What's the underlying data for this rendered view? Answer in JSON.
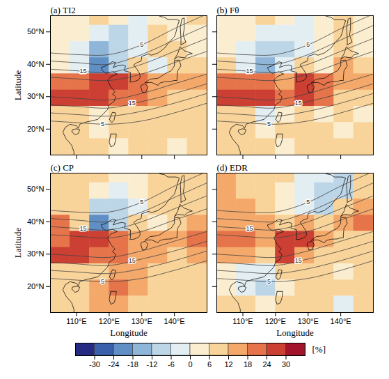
{
  "chart_data": {
    "type": "heatmap",
    "xlabel": "Longitude",
    "ylabel": "Latitude",
    "xlim": [
      102,
      150
    ],
    "ylim": [
      12,
      55
    ],
    "xticks": [
      {
        "value": 110,
        "label": "110°E"
      },
      {
        "value": 120,
        "label": "120°E"
      },
      {
        "value": 130,
        "label": "130°E"
      },
      {
        "value": 140,
        "label": "140°E"
      }
    ],
    "yticks": [
      {
        "value": 20,
        "label": "20°N"
      },
      {
        "value": 30,
        "label": "30°N"
      },
      {
        "value": 40,
        "label": "40°N"
      },
      {
        "value": 50,
        "label": "50°N"
      }
    ],
    "x": [
      105,
      111,
      117,
      123,
      129,
      135,
      141,
      147
    ],
    "y": [
      54.5,
      49.5,
      44.5,
      39.5,
      34.5,
      29.5,
      24.5,
      19.5,
      14.5
    ],
    "panels": [
      {
        "title": "(a) TI2",
        "values": [
          [
            2,
            4,
            6,
            0,
            -6,
            2,
            4,
            6
          ],
          [
            4,
            2,
            -6,
            -12,
            -6,
            6,
            4,
            2
          ],
          [
            4,
            -6,
            -18,
            -12,
            -6,
            6,
            6,
            4
          ],
          [
            2,
            -6,
            -24,
            -12,
            6,
            -6,
            6,
            8
          ],
          [
            18,
            20,
            24,
            24,
            18,
            12,
            12,
            12
          ],
          [
            24,
            24,
            24,
            20,
            18,
            12,
            8,
            6
          ],
          [
            6,
            6,
            0,
            6,
            6,
            6,
            6,
            6
          ],
          [
            6,
            6,
            4,
            6,
            6,
            6,
            6,
            6
          ],
          [
            6,
            10,
            6,
            4,
            6,
            6,
            4,
            6
          ]
        ]
      },
      {
        "title": "(b) Fθ",
        "values": [
          [
            4,
            2,
            6,
            0,
            -6,
            4,
            6,
            2
          ],
          [
            4,
            0,
            -6,
            -6,
            -6,
            4,
            6,
            4
          ],
          [
            2,
            -6,
            -12,
            -12,
            -6,
            4,
            6,
            4
          ],
          [
            6,
            -6,
            -18,
            -6,
            6,
            0,
            12,
            8
          ],
          [
            18,
            18,
            18,
            12,
            24,
            18,
            12,
            12
          ],
          [
            24,
            24,
            24,
            18,
            24,
            18,
            8,
            6
          ],
          [
            6,
            6,
            -6,
            0,
            6,
            4,
            6,
            4
          ],
          [
            6,
            6,
            0,
            6,
            6,
            6,
            4,
            6
          ],
          [
            6,
            6,
            6,
            4,
            6,
            6,
            6,
            6
          ]
        ]
      },
      {
        "title": "(c) CP",
        "values": [
          [
            6,
            6,
            6,
            4,
            0,
            6,
            6,
            6
          ],
          [
            6,
            6,
            0,
            -6,
            0,
            6,
            6,
            6
          ],
          [
            6,
            6,
            -12,
            -12,
            -6,
            6,
            6,
            6
          ],
          [
            18,
            6,
            -24,
            -12,
            6,
            0,
            6,
            12
          ],
          [
            20,
            24,
            24,
            18,
            12,
            12,
            12,
            18
          ],
          [
            24,
            24,
            18,
            18,
            12,
            12,
            8,
            12
          ],
          [
            6,
            6,
            6,
            12,
            12,
            8,
            6,
            6
          ],
          [
            6,
            6,
            12,
            18,
            12,
            6,
            6,
            6
          ],
          [
            6,
            6,
            12,
            12,
            6,
            6,
            6,
            6
          ]
        ]
      },
      {
        "title": "(d) EDR",
        "values": [
          [
            12,
            6,
            6,
            6,
            -6,
            -6,
            -12,
            6
          ],
          [
            12,
            6,
            6,
            0,
            -6,
            -12,
            -12,
            6
          ],
          [
            12,
            12,
            6,
            0,
            -6,
            -12,
            6,
            12
          ],
          [
            12,
            12,
            12,
            6,
            12,
            6,
            12,
            18
          ],
          [
            18,
            18,
            12,
            24,
            24,
            12,
            6,
            6
          ],
          [
            12,
            12,
            6,
            24,
            12,
            6,
            6,
            6
          ],
          [
            0,
            -6,
            -6,
            6,
            6,
            6,
            0,
            6
          ],
          [
            0,
            -6,
            -12,
            0,
            6,
            6,
            6,
            6
          ],
          [
            6,
            6,
            0,
            6,
            6,
            6,
            -6,
            6
          ]
        ]
      }
    ],
    "colors": [
      "#262a82",
      "#3a5fab",
      "#5f8fc4",
      "#8fb6d9",
      "#bcd6e8",
      "#e3eef2",
      "#fbeed0",
      "#f9d49a",
      "#f4a86a",
      "#e6744a",
      "#cc3f33",
      "#a3132b"
    ],
    "colorbar": {
      "label": "[%]",
      "range": [
        -36,
        36
      ],
      "ticks": [
        -30,
        -24,
        -18,
        -12,
        -6,
        0,
        6,
        12,
        18,
        24,
        30
      ]
    },
    "contours": [
      {
        "level": 5,
        "points": [
          [
            102,
            43.5
          ],
          [
            110,
            43
          ],
          [
            120,
            43
          ],
          [
            130,
            46
          ],
          [
            140,
            51
          ],
          [
            150,
            55.5
          ]
        ]
      },
      {
        "level": 10,
        "points": [
          [
            102,
            41
          ],
          [
            110,
            40.5
          ],
          [
            120,
            40
          ],
          [
            130,
            43
          ],
          [
            140,
            47.5
          ],
          [
            150,
            52
          ]
        ]
      },
      {
        "level": 15,
        "points": [
          [
            102,
            38.5
          ],
          [
            110,
            38
          ],
          [
            120,
            37.5
          ],
          [
            130,
            40
          ],
          [
            140,
            44
          ],
          [
            150,
            48
          ]
        ]
      },
      {
        "level": 20,
        "points": [
          [
            102,
            36
          ],
          [
            110,
            35.5
          ],
          [
            120,
            35
          ],
          [
            130,
            37
          ],
          [
            140,
            40.5
          ],
          [
            150,
            44
          ]
        ]
      },
      {
        "level": 20,
        "points": [
          [
            102,
            30
          ],
          [
            110,
            29.5
          ],
          [
            120,
            29
          ],
          [
            130,
            31
          ],
          [
            140,
            34
          ],
          [
            150,
            37
          ]
        ]
      },
      {
        "level": 15,
        "points": [
          [
            102,
            27.5
          ],
          [
            110,
            27
          ],
          [
            120,
            26.5
          ],
          [
            130,
            28.5
          ],
          [
            140,
            31
          ],
          [
            150,
            34
          ]
        ]
      },
      {
        "level": 10,
        "points": [
          [
            102,
            25
          ],
          [
            110,
            24.5
          ],
          [
            120,
            24
          ],
          [
            130,
            25.5
          ],
          [
            140,
            28
          ],
          [
            150,
            31
          ]
        ]
      },
      {
        "level": 5,
        "points": [
          [
            102,
            22.5
          ],
          [
            110,
            22
          ],
          [
            120,
            21.5
          ],
          [
            130,
            22.5
          ],
          [
            140,
            25
          ],
          [
            150,
            28
          ]
        ]
      }
    ],
    "contour_labels": [
      {
        "level": 15,
        "lon": 112,
        "lat": 37.9
      },
      {
        "level": 15,
        "lon": 127,
        "lat": 27.9
      },
      {
        "level": 5,
        "lon": 130,
        "lat": 46
      },
      {
        "level": 5,
        "lon": 118,
        "lat": 21.6
      }
    ],
    "coastlines": [
      [
        [
          109.2,
          12
        ],
        [
          109.2,
          13
        ],
        [
          108.5,
          15
        ],
        [
          106.8,
          17
        ],
        [
          105.8,
          19
        ],
        [
          106.5,
          20.5
        ],
        [
          108,
          21.5
        ],
        [
          110,
          21
        ],
        [
          110.5,
          20.2
        ],
        [
          111,
          21.5
        ],
        [
          113,
          22.2
        ],
        [
          114.5,
          22.5
        ],
        [
          116.5,
          23
        ],
        [
          118,
          24.5
        ],
        [
          119.5,
          26
        ],
        [
          120,
          27.5
        ],
        [
          121.5,
          28.5
        ],
        [
          122,
          30
        ],
        [
          121,
          30.8
        ],
        [
          121.8,
          31.5
        ],
        [
          120.5,
          33
        ],
        [
          119.5,
          35
        ],
        [
          120.5,
          36.2
        ],
        [
          122.5,
          37
        ],
        [
          121,
          37.7
        ],
        [
          119,
          37.2
        ],
        [
          118,
          38
        ],
        [
          117.5,
          39
        ],
        [
          119,
          39.5
        ],
        [
          121,
          40.8
        ],
        [
          122,
          40.5
        ],
        [
          121.2,
          39
        ],
        [
          122.5,
          39.5
        ],
        [
          124,
          39.8
        ],
        [
          125,
          39.5
        ],
        [
          124.7,
          38
        ],
        [
          126.5,
          37.5
        ],
        [
          126.5,
          35
        ],
        [
          126.3,
          34.5
        ],
        [
          127.5,
          34.6
        ],
        [
          129,
          35.2
        ],
        [
          129.5,
          36
        ],
        [
          129.4,
          37
        ],
        [
          128.5,
          38.5
        ],
        [
          127.5,
          39.8
        ],
        [
          128.5,
          40.5
        ],
        [
          129.8,
          41
        ],
        [
          130,
          42.5
        ],
        [
          131,
          42.8
        ],
        [
          132,
          43.2
        ],
        [
          133,
          42.8
        ],
        [
          135,
          43.5
        ],
        [
          137,
          45
        ],
        [
          138.5,
          47
        ],
        [
          140,
          48.5
        ],
        [
          140.5,
          50
        ],
        [
          141,
          52
        ],
        [
          141.5,
          53.5
        ],
        [
          140.5,
          53.8
        ],
        [
          138,
          53.8
        ],
        [
          137,
          54.5
        ],
        [
          135.5,
          54.8
        ]
      ],
      [
        [
          108.6,
          19.2
        ],
        [
          109.5,
          18.2
        ],
        [
          110.5,
          18.6
        ],
        [
          111,
          19.8
        ],
        [
          110,
          20.1
        ],
        [
          108.7,
          19.8
        ],
        [
          108.6,
          19.2
        ]
      ],
      [
        [
          120.1,
          23
        ],
        [
          120.8,
          22
        ],
        [
          121.5,
          22.8
        ],
        [
          122,
          25
        ],
        [
          121,
          25.2
        ],
        [
          120.1,
          23
        ]
      ],
      [
        [
          120.5,
          18.5
        ],
        [
          122.2,
          18.5
        ],
        [
          122,
          16.5
        ],
        [
          121.5,
          15
        ],
        [
          120.5,
          14.5
        ],
        [
          120,
          16
        ],
        [
          120.5,
          18.5
        ]
      ],
      [
        [
          129.7,
          33
        ],
        [
          130.2,
          31.3
        ],
        [
          131.2,
          31.4
        ],
        [
          131.9,
          33
        ],
        [
          131,
          34
        ],
        [
          129.8,
          33.5
        ],
        [
          129.7,
          33
        ]
      ],
      [
        [
          131,
          34.3
        ],
        [
          132.5,
          35.4
        ],
        [
          135,
          35.7
        ],
        [
          136,
          36.3
        ],
        [
          137,
          37
        ],
        [
          139,
          38
        ],
        [
          140,
          39.5
        ],
        [
          140,
          41.2
        ],
        [
          141.5,
          41.3
        ],
        [
          142,
          39.5
        ],
        [
          141,
          38
        ],
        [
          140.8,
          36
        ],
        [
          140.8,
          35
        ],
        [
          139.8,
          35
        ],
        [
          139,
          34.7
        ],
        [
          137,
          34.6
        ],
        [
          135.5,
          34.2
        ],
        [
          135,
          33.5
        ],
        [
          133,
          34.4
        ],
        [
          131,
          34.3
        ]
      ],
      [
        [
          140,
          41.6
        ],
        [
          141,
          43.2
        ],
        [
          141.7,
          45.4
        ],
        [
          143,
          44.2
        ],
        [
          145.5,
          43.3
        ],
        [
          144,
          42.9
        ],
        [
          143.2,
          42
        ],
        [
          141,
          42.3
        ],
        [
          140,
          41.6
        ]
      ],
      [
        [
          142,
          46
        ],
        [
          143.5,
          46.8
        ],
        [
          142.7,
          49
        ],
        [
          143,
          51
        ],
        [
          143,
          54.3
        ],
        [
          142.3,
          54
        ],
        [
          141.8,
          51.5
        ],
        [
          142,
          48
        ],
        [
          142,
          46
        ]
      ]
    ]
  }
}
